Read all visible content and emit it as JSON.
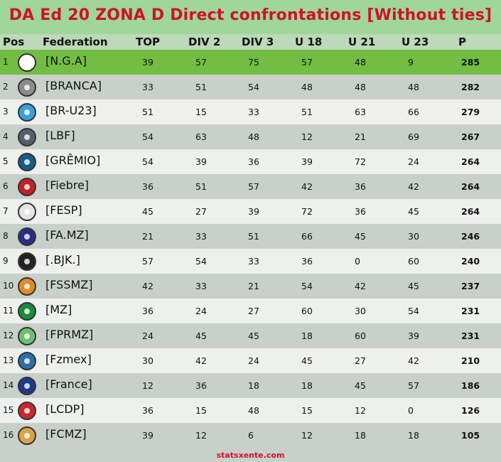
{
  "title": "DA Ed 20 ZONA D Direct confrontations [Without ties]",
  "headers": {
    "pos": "Pos",
    "federation": "Federation",
    "top": "TOP",
    "div2": "DIV 2",
    "div3": "DIV 3",
    "u18": "U 18",
    "u21": "U 21",
    "u23": "U 23",
    "p": "P"
  },
  "rows": [
    {
      "pos": "1",
      "federation": "[N.G.A]",
      "logo_icon": "nga-crest-icon",
      "logo_color": "#ffffff",
      "top": "39",
      "div2": "57",
      "div3": "75",
      "u18": "57",
      "u21": "48",
      "u23": "9",
      "p": "285"
    },
    {
      "pos": "2",
      "federation": "[BRANCA]",
      "logo_icon": "bird-crest-icon",
      "logo_color": "#8c8c8c",
      "top": "33",
      "div2": "51",
      "div3": "54",
      "u18": "48",
      "u21": "48",
      "u23": "48",
      "p": "282"
    },
    {
      "pos": "3",
      "federation": "[BR-U23]",
      "logo_icon": "globe-crest-icon",
      "logo_color": "#3aa0d8",
      "top": "51",
      "div2": "15",
      "div3": "33",
      "u18": "51",
      "u21": "63",
      "u23": "66",
      "p": "279"
    },
    {
      "pos": "4",
      "federation": "[LBF]",
      "logo_icon": "shield-crest-icon",
      "logo_color": "#55606a",
      "top": "54",
      "div2": "63",
      "div3": "48",
      "u18": "12",
      "u21": "21",
      "u23": "69",
      "p": "267"
    },
    {
      "pos": "5",
      "federation": "[GRÊMIO]",
      "logo_icon": "gremio-crest-icon",
      "logo_color": "#1c5a88",
      "top": "54",
      "div2": "39",
      "div3": "36",
      "u18": "39",
      "u21": "72",
      "u23": "24",
      "p": "264"
    },
    {
      "pos": "6",
      "federation": "[Fiebre]",
      "logo_icon": "fiebre-crest-icon",
      "logo_color": "#c41f2a",
      "top": "36",
      "div2": "51",
      "div3": "57",
      "u18": "42",
      "u21": "36",
      "u23": "42",
      "p": "264"
    },
    {
      "pos": "7",
      "federation": "[FESP]",
      "logo_icon": "fesp-crest-icon",
      "logo_color": "#e4e4e4",
      "top": "45",
      "div2": "27",
      "div3": "39",
      "u18": "72",
      "u21": "36",
      "u23": "45",
      "p": "264"
    },
    {
      "pos": "8",
      "federation": "[FA.MZ]",
      "logo_icon": "famz-crest-icon",
      "logo_color": "#2a2c8a",
      "top": "21",
      "div2": "33",
      "div3": "51",
      "u18": "66",
      "u21": "45",
      "u23": "30",
      "p": "246"
    },
    {
      "pos": "9",
      "federation": "[.BJK.]",
      "logo_icon": "bjk-crest-icon",
      "logo_color": "#222222",
      "top": "57",
      "div2": "54",
      "div3": "33",
      "u18": "36",
      "u21": "0",
      "u23": "60",
      "p": "240"
    },
    {
      "pos": "10",
      "federation": "[FSSMZ]",
      "logo_icon": "fssmz-crest-icon",
      "logo_color": "#e08a2a",
      "top": "42",
      "div2": "33",
      "div3": "21",
      "u18": "54",
      "u21": "42",
      "u23": "45",
      "p": "237"
    },
    {
      "pos": "11",
      "federation": "[MZ]",
      "logo_icon": "mz-crest-icon",
      "logo_color": "#1e8a3c",
      "top": "36",
      "div2": "24",
      "div3": "27",
      "u18": "60",
      "u21": "30",
      "u23": "54",
      "p": "231"
    },
    {
      "pos": "12",
      "federation": "[FPRMZ]",
      "logo_icon": "fprmz-crest-icon",
      "logo_color": "#6cc070",
      "top": "24",
      "div2": "45",
      "div3": "45",
      "u18": "18",
      "u21": "60",
      "u23": "39",
      "p": "231"
    },
    {
      "pos": "13",
      "federation": "[Fzmex]",
      "logo_icon": "fzmex-crest-icon",
      "logo_color": "#2f6ea8",
      "top": "30",
      "div2": "42",
      "div3": "24",
      "u18": "45",
      "u21": "27",
      "u23": "42",
      "p": "210"
    },
    {
      "pos": "14",
      "federation": "[France]",
      "logo_icon": "france-crest-icon",
      "logo_color": "#1d3a8c",
      "top": "12",
      "div2": "36",
      "div3": "18",
      "u18": "18",
      "u21": "45",
      "u23": "57",
      "p": "186"
    },
    {
      "pos": "15",
      "federation": "[LCDP]",
      "logo_icon": "lcdp-mask-icon",
      "logo_color": "#c9282e",
      "top": "36",
      "div2": "15",
      "div3": "48",
      "u18": "15",
      "u21": "12",
      "u23": "0",
      "p": "126"
    },
    {
      "pos": "16",
      "federation": "[FCMZ]",
      "logo_icon": "fcmz-crest-icon",
      "logo_color": "#d8a446",
      "top": "39",
      "div2": "12",
      "div3": "6",
      "u18": "12",
      "u21": "18",
      "u23": "18",
      "p": "105"
    }
  ],
  "footer": "statsxente.com"
}
